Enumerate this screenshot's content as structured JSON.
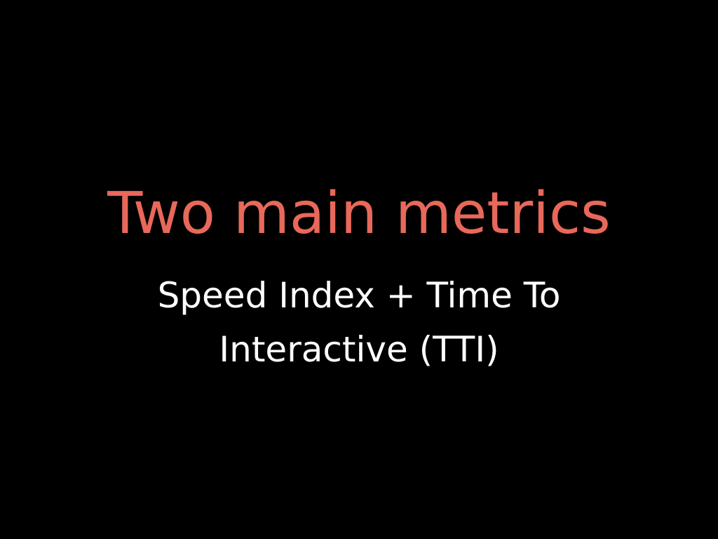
{
  "slide": {
    "title": "Two main metrics",
    "subtitle_line1": "Speed Index + Time To",
    "subtitle_line2": "Interactive (TTI)",
    "colors": {
      "background": "#000000",
      "title": "#e8685a",
      "subtitle": "#ffffff"
    }
  }
}
